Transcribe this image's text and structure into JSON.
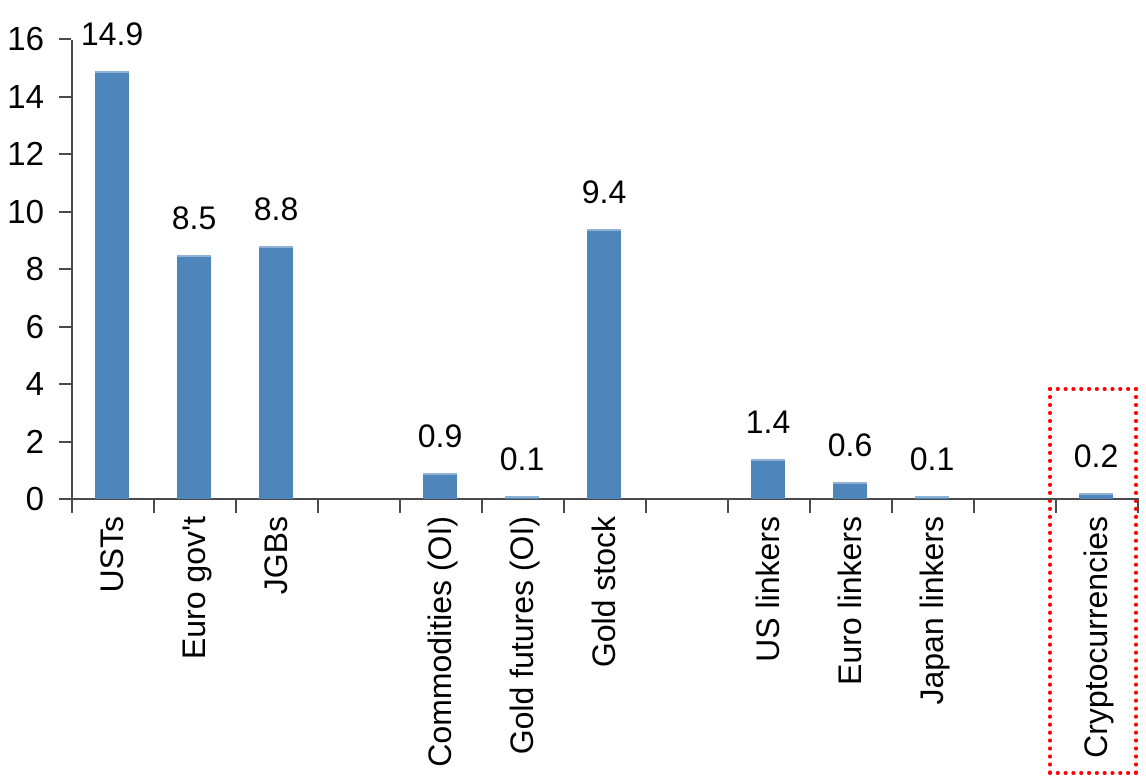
{
  "chart_data": {
    "type": "bar",
    "title": "",
    "xlabel": "",
    "ylabel": "",
    "categories": [
      "USTs",
      "Euro gov't",
      "JGBs",
      "Commodities (OI)",
      "Gold futures (OI)",
      "Gold stock",
      "US linkers",
      "Euro linkers",
      "Japan linkers",
      "Cryptocurrencies"
    ],
    "values": [
      14.9,
      8.5,
      8.8,
      0.9,
      0.1,
      9.4,
      1.4,
      0.6,
      0.1,
      0.2
    ],
    "value_labels": [
      "14.9",
      "8.5",
      "8.8",
      "0.9",
      "0.1",
      "9.4",
      "1.4",
      "0.6",
      "0.1",
      "0.2"
    ],
    "slot_index": [
      0,
      1,
      2,
      4,
      5,
      6,
      8,
      9,
      10,
      12
    ],
    "total_slots": 13,
    "ylim": [
      0,
      16
    ],
    "y_ticks": [
      "0",
      "2",
      "4",
      "6",
      "8",
      "10",
      "12",
      "14",
      "16"
    ],
    "grid": "off",
    "legend": "none",
    "bar_color": "#4E86BC",
    "axis_color": "#4a4a4a",
    "text_color": "#000000",
    "highlight": {
      "target": "Cryptocurrencies",
      "shape": "dotted-rectangle",
      "color": "#FF0000"
    }
  }
}
